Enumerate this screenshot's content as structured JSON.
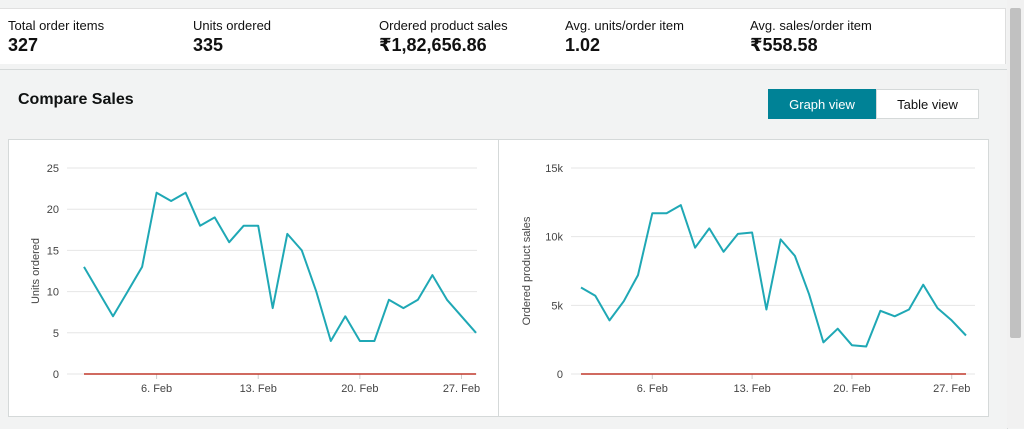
{
  "metrics": [
    {
      "label": "Total order items",
      "value": "327"
    },
    {
      "label": "Units ordered",
      "value": "335"
    },
    {
      "label": "Ordered product sales",
      "value": "₹1,82,656.86"
    },
    {
      "label": "Avg. units/order item",
      "value": "1.02"
    },
    {
      "label": "Avg. sales/order item",
      "value": "₹558.58"
    }
  ],
  "section": {
    "title": "Compare Sales",
    "graph_view_label": "Graph view",
    "table_view_label": "Table view"
  },
  "colors": {
    "series": "#1fa8b5",
    "baseline": "#c0392b",
    "accent": "#008296"
  },
  "chart_data": [
    {
      "type": "line",
      "ylabel": "Units ordered",
      "ylim": [
        0,
        25
      ],
      "yticks": [
        "0",
        "5",
        "10",
        "15",
        "20",
        "25"
      ],
      "ytick_values": [
        0,
        5,
        10,
        15,
        20,
        25
      ],
      "x_ticks": [
        {
          "label": "6. Feb",
          "day": 6
        },
        {
          "label": "13. Feb",
          "day": 13
        },
        {
          "label": "20. Feb",
          "day": 20
        },
        {
          "label": "27. Feb",
          "day": 27
        }
      ],
      "x": [
        1,
        2,
        3,
        4,
        5,
        6,
        7,
        8,
        9,
        10,
        11,
        12,
        13,
        14,
        15,
        16,
        17,
        18,
        19,
        20,
        21,
        22,
        23,
        24,
        25,
        26,
        27,
        28
      ],
      "series": [
        {
          "values": [
            13,
            10,
            7,
            10,
            13,
            22,
            21,
            22,
            18,
            19,
            16,
            18,
            18,
            8,
            17,
            15,
            10,
            4,
            7,
            4,
            4,
            9,
            8,
            9,
            12,
            9,
            7,
            5
          ]
        }
      ],
      "baseline": 0
    },
    {
      "type": "line",
      "ylabel": "Ordered product sales",
      "ylim": [
        0,
        15000
      ],
      "yticks": [
        "0",
        "5k",
        "10k",
        "15k"
      ],
      "ytick_values": [
        0,
        5000,
        10000,
        15000
      ],
      "x_ticks": [
        {
          "label": "6. Feb",
          "day": 6
        },
        {
          "label": "13. Feb",
          "day": 13
        },
        {
          "label": "20. Feb",
          "day": 20
        },
        {
          "label": "27. Feb",
          "day": 27
        }
      ],
      "x": [
        1,
        2,
        3,
        4,
        5,
        6,
        7,
        8,
        9,
        10,
        11,
        12,
        13,
        14,
        15,
        16,
        17,
        18,
        19,
        20,
        21,
        22,
        23,
        24,
        25,
        26,
        27,
        28
      ],
      "series": [
        {
          "values": [
            6300,
            5700,
            3900,
            5300,
            7200,
            11700,
            11700,
            12300,
            9200,
            10600,
            8900,
            10200,
            10300,
            4700,
            9800,
            8600,
            5800,
            2300,
            3300,
            2100,
            2000,
            4600,
            4200,
            4700,
            6500,
            4800,
            3900,
            2800
          ]
        }
      ],
      "baseline": 0
    }
  ]
}
